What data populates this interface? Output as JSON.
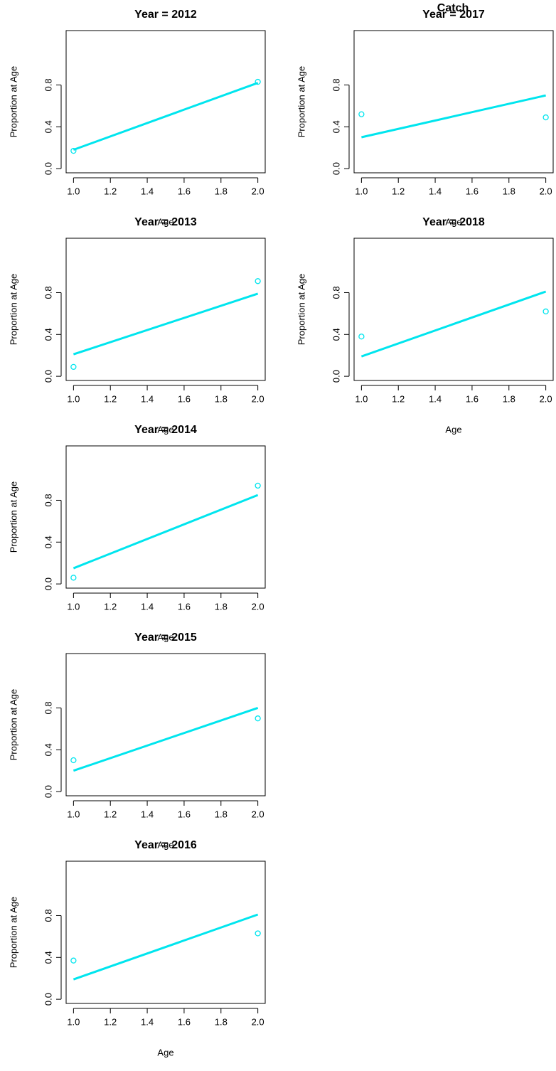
{
  "title": "Catch",
  "chart_data": [
    {
      "type": "line",
      "title": "Year = 2012",
      "xlabel": "Age",
      "ylabel": "Proportion at Age",
      "x": [
        1,
        2
      ],
      "series": [
        {
          "type": "line",
          "color": "#00e5ee",
          "values": [
            0.18,
            0.82
          ]
        },
        {
          "type": "scatter",
          "color": "#00e5ee",
          "values": [
            0.17,
            0.83
          ]
        }
      ],
      "xlim": [
        0.96,
        2.04
      ],
      "ylim": [
        -0.04,
        1.32
      ],
      "xticks": [
        {
          "value": 1,
          "label": "1.0"
        },
        {
          "value": 1.2,
          "label": "1.2"
        },
        {
          "value": 1.4,
          "label": "1.4"
        },
        {
          "value": 1.6,
          "label": "1.6"
        },
        {
          "value": 1.8,
          "label": "1.8"
        },
        {
          "value": 2,
          "label": "2.0"
        }
      ],
      "yticks": [
        {
          "value": 0,
          "label": "0.0"
        },
        0.4,
        0.8
      ]
    },
    {
      "type": "line",
      "title": "Year = 2013",
      "xlabel": "Age",
      "ylabel": "Proportion at Age",
      "x": [
        1,
        2
      ],
      "series": [
        {
          "type": "line",
          "color": "#00e5ee",
          "values": [
            0.21,
            0.79
          ]
        },
        {
          "type": "scatter",
          "color": "#00e5ee",
          "values": [
            0.09,
            0.91
          ]
        }
      ],
      "xlim": [
        0.96,
        2.04
      ],
      "ylim": [
        -0.04,
        1.32
      ],
      "xticks": [
        {
          "value": 1,
          "label": "1.0"
        },
        {
          "value": 1.2,
          "label": "1.2"
        },
        {
          "value": 1.4,
          "label": "1.4"
        },
        {
          "value": 1.6,
          "label": "1.6"
        },
        {
          "value": 1.8,
          "label": "1.8"
        },
        {
          "value": 2,
          "label": "2.0"
        }
      ],
      "yticks": [
        {
          "value": 0,
          "label": "0.0"
        },
        0.4,
        0.8
      ]
    },
    {
      "type": "line",
      "title": "Year = 2014",
      "xlabel": "Age",
      "ylabel": "Proportion at Age",
      "x": [
        1,
        2
      ],
      "series": [
        {
          "type": "line",
          "color": "#00e5ee",
          "values": [
            0.15,
            0.85
          ]
        },
        {
          "type": "scatter",
          "color": "#00e5ee",
          "values": [
            0.06,
            0.94
          ]
        }
      ],
      "xlim": [
        0.96,
        2.04
      ],
      "ylim": [
        -0.04,
        1.32
      ],
      "xticks": [
        {
          "value": 1,
          "label": "1.0"
        },
        {
          "value": 1.2,
          "label": "1.2"
        },
        {
          "value": 1.4,
          "label": "1.4"
        },
        {
          "value": 1.6,
          "label": "1.6"
        },
        {
          "value": 1.8,
          "label": "1.8"
        },
        {
          "value": 2,
          "label": "2.0"
        }
      ],
      "yticks": [
        {
          "value": 0,
          "label": "0.0"
        },
        0.4,
        0.8
      ]
    },
    {
      "type": "line",
      "title": "Year = 2015",
      "xlabel": "Age",
      "ylabel": "Proportion at Age",
      "x": [
        1,
        2
      ],
      "series": [
        {
          "type": "line",
          "color": "#00e5ee",
          "values": [
            0.2,
            0.8
          ]
        },
        {
          "type": "scatter",
          "color": "#00e5ee",
          "values": [
            0.3,
            0.7
          ]
        }
      ],
      "xlim": [
        0.96,
        2.04
      ],
      "ylim": [
        -0.04,
        1.32
      ],
      "xticks": [
        {
          "value": 1,
          "label": "1.0"
        },
        {
          "value": 1.2,
          "label": "1.2"
        },
        {
          "value": 1.4,
          "label": "1.4"
        },
        {
          "value": 1.6,
          "label": "1.6"
        },
        {
          "value": 1.8,
          "label": "1.8"
        },
        {
          "value": 2,
          "label": "2.0"
        }
      ],
      "yticks": [
        {
          "value": 0,
          "label": "0.0"
        },
        0.4,
        0.8
      ]
    },
    {
      "type": "line",
      "title": "Year = 2016",
      "xlabel": "Age",
      "ylabel": "Proportion at Age",
      "x": [
        1,
        2
      ],
      "series": [
        {
          "type": "line",
          "color": "#00e5ee",
          "values": [
            0.19,
            0.81
          ]
        },
        {
          "type": "scatter",
          "color": "#00e5ee",
          "values": [
            0.37,
            0.63
          ]
        }
      ],
      "xlim": [
        0.96,
        2.04
      ],
      "ylim": [
        -0.04,
        1.32
      ],
      "xticks": [
        {
          "value": 1,
          "label": "1.0"
        },
        {
          "value": 1.2,
          "label": "1.2"
        },
        {
          "value": 1.4,
          "label": "1.4"
        },
        {
          "value": 1.6,
          "label": "1.6"
        },
        {
          "value": 1.8,
          "label": "1.8"
        },
        {
          "value": 2,
          "label": "2.0"
        }
      ],
      "yticks": [
        {
          "value": 0,
          "label": "0.0"
        },
        0.4,
        0.8
      ]
    },
    {
      "type": "line",
      "title": "Year = 2017",
      "xlabel": "Age",
      "ylabel": "Proportion at Age",
      "x": [
        1,
        2
      ],
      "series": [
        {
          "type": "line",
          "color": "#00e5ee",
          "values": [
            0.3,
            0.7
          ]
        },
        {
          "type": "scatter",
          "color": "#00e5ee",
          "values": [
            0.52,
            0.49
          ]
        }
      ],
      "xlim": [
        0.96,
        2.04
      ],
      "ylim": [
        -0.04,
        1.32
      ],
      "xticks": [
        {
          "value": 1,
          "label": "1.0"
        },
        {
          "value": 1.2,
          "label": "1.2"
        },
        {
          "value": 1.4,
          "label": "1.4"
        },
        {
          "value": 1.6,
          "label": "1.6"
        },
        {
          "value": 1.8,
          "label": "1.8"
        },
        {
          "value": 2,
          "label": "2.0"
        }
      ],
      "yticks": [
        {
          "value": 0,
          "label": "0.0"
        },
        0.4,
        0.8
      ]
    },
    {
      "type": "line",
      "title": "Year = 2018",
      "xlabel": "Age",
      "ylabel": "Proportion at Age",
      "x": [
        1,
        2
      ],
      "series": [
        {
          "type": "line",
          "color": "#00e5ee",
          "values": [
            0.19,
            0.81
          ]
        },
        {
          "type": "scatter",
          "color": "#00e5ee",
          "values": [
            0.38,
            0.62
          ]
        }
      ],
      "xlim": [
        0.96,
        2.04
      ],
      "ylim": [
        -0.04,
        1.32
      ],
      "xticks": [
        {
          "value": 1,
          "label": "1.0"
        },
        {
          "value": 1.2,
          "label": "1.2"
        },
        {
          "value": 1.4,
          "label": "1.4"
        },
        {
          "value": 1.6,
          "label": "1.6"
        },
        {
          "value": 1.8,
          "label": "1.8"
        },
        {
          "value": 2,
          "label": "2.0"
        }
      ],
      "yticks": [
        {
          "value": 0,
          "label": "0.0"
        },
        0.4,
        0.8
      ]
    }
  ]
}
